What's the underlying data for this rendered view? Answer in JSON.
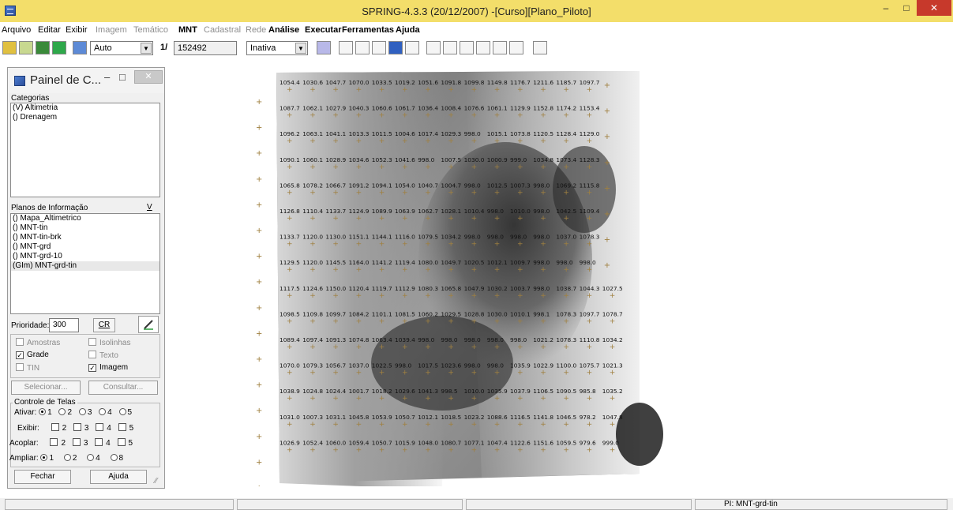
{
  "window": {
    "title": "SPRING-4.3.3 (20/12/2007) -[Curso][Plano_Piloto]",
    "min_glyph": "–",
    "max_glyph": "□",
    "close_glyph": "✕"
  },
  "menu": {
    "items": [
      {
        "label": "Arquivo",
        "enabled": true
      },
      {
        "label": "Editar",
        "enabled": true
      },
      {
        "label": "Exibir",
        "enabled": true
      },
      {
        "label": "Imagem",
        "enabled": false
      },
      {
        "label": "Temático",
        "enabled": false
      },
      {
        "label": "MNT",
        "enabled": true
      },
      {
        "label": "Cadastral",
        "enabled": false
      },
      {
        "label": "Rede",
        "enabled": false
      },
      {
        "label": "Análise",
        "enabled": true
      },
      {
        "label": "Executar",
        "enabled": true
      },
      {
        "label": "Ferramentas",
        "enabled": true
      },
      {
        "label": "Ajuda",
        "enabled": true
      }
    ]
  },
  "toolbar": {
    "zoom_mode": "Auto",
    "scale_prefix": "1/",
    "scale_value": "152492",
    "mode": "Inativa"
  },
  "panel": {
    "title": "Painel de C...",
    "categories_label": "Categorias",
    "categories": [
      "(V) Altimetria",
      "() Drenagem"
    ],
    "planos_label": "Planos de Informação",
    "planos_sort": "V",
    "planos": [
      "() Mapa_Altimetrico",
      "() MNT-tin",
      "() MNT-tin-brk",
      "() MNT-grd",
      "() MNT-grd-10",
      "(GIm) MNT-grd-tin"
    ],
    "planos_selected_index": 5,
    "prioridade_label": "Prioridade:",
    "prioridade_value": "300",
    "cr_label": "CR",
    "checks": {
      "amostras": {
        "label": "Amostras",
        "checked": false,
        "enabled": false
      },
      "isolinhas": {
        "label": "Isolinhas",
        "checked": false,
        "enabled": false
      },
      "grade": {
        "label": "Grade",
        "checked": true,
        "enabled": true
      },
      "texto": {
        "label": "Texto",
        "checked": false,
        "enabled": false
      },
      "tin": {
        "label": "TIN",
        "checked": false,
        "enabled": false
      },
      "imagem": {
        "label": "Imagem",
        "checked": true,
        "enabled": true
      }
    },
    "selecionar_label": "Selecionar...",
    "consultar_label": "Consultar...",
    "controle_label": "Controle de Telas",
    "ativar_label": "Ativar:",
    "exibir_label": "Exibir:",
    "acoplar_label": "Acoplar:",
    "ampliar_label": "Ampliar:",
    "screen_numbers": [
      "1",
      "2",
      "3",
      "4",
      "5"
    ],
    "ampliar_options": [
      "1",
      "2",
      "4",
      "8"
    ],
    "fechar_label": "Fechar",
    "ajuda_label": "Ajuda"
  },
  "grid_values": [
    [
      "1054.4",
      "1030.6",
      "1047.7",
      "1070.0",
      "1033.5",
      "1019.2",
      "1051.6",
      "1091.8",
      "1099.8",
      "1149.8",
      "1176.7",
      "1211.6",
      "1185.7",
      "1097.7"
    ],
    [
      "1087.7",
      "1062.1",
      "1027.9",
      "1040.3",
      "1060.6",
      "1061.7",
      "1036.4",
      "1008.4",
      "1076.6",
      "1061.1",
      "1129.9",
      "1152.8",
      "1174.2",
      "1153.4"
    ],
    [
      "1096.2",
      "1063.1",
      "1041.1",
      "1013.3",
      "1011.5",
      "1004.6",
      "1017.4",
      "1029.3",
      "998.0",
      "1015.1",
      "1073.8",
      "1120.5",
      "1128.4",
      "1129.0"
    ],
    [
      "1090.1",
      "1060.1",
      "1028.9",
      "1034.6",
      "1052.3",
      "1041.6",
      "998.0",
      "1007.5",
      "1030.0",
      "1000.9",
      "999.0",
      "1034.8",
      "1073.4",
      "1128.3"
    ],
    [
      "1065.8",
      "1078.2",
      "1066.7",
      "1091.2",
      "1094.1",
      "1054.0",
      "1040.7",
      "1004.7",
      "998.0",
      "1012.5",
      "1007.3",
      "998.0",
      "1069.2",
      "1115.8"
    ],
    [
      "1126.8",
      "1110.4",
      "1133.7",
      "1124.9",
      "1089.9",
      "1063.9",
      "1062.7",
      "1028.1",
      "1010.4",
      "998.0",
      "1010.0",
      "998.0",
      "1042.5",
      "1109.4"
    ],
    [
      "1133.7",
      "1120.0",
      "1130.0",
      "1151.1",
      "1144.1",
      "1116.0",
      "1079.5",
      "1034.2",
      "998.0",
      "998.0",
      "998.0",
      "998.0",
      "1037.0",
      "1078.3"
    ],
    [
      "1129.5",
      "1120.0",
      "1145.5",
      "1164.0",
      "1141.2",
      "1119.4",
      "1080.0",
      "1049.7",
      "1020.5",
      "1012.1",
      "1009.7",
      "998.0",
      "998.0",
      "998.0"
    ],
    [
      "1117.5",
      "1124.6",
      "1150.0",
      "1120.4",
      "1119.7",
      "1112.9",
      "1080.3",
      "1065.8",
      "1047.9",
      "1030.2",
      "1003.7",
      "998.0",
      "1038.7",
      "1044.3",
      "1027.5"
    ],
    [
      "1098.5",
      "1109.8",
      "1099.7",
      "1084.2",
      "1101.1",
      "1081.5",
      "1060.2",
      "1029.5",
      "1028.8",
      "1030.0",
      "1010.1",
      "998.1",
      "1078.3",
      "1097.7",
      "1078.7"
    ],
    [
      "1089.4",
      "1097.4",
      "1091.3",
      "1074.8",
      "1063.4",
      "1039.4",
      "998.0",
      "998.0",
      "998.0",
      "998.0",
      "998.0",
      "1021.2",
      "1078.3",
      "1110.8",
      "1034.2"
    ],
    [
      "1070.0",
      "1079.3",
      "1056.7",
      "1037.0",
      "1022.5",
      "998.0",
      "1017.5",
      "1023.6",
      "998.0",
      "998.0",
      "1035.9",
      "1022.9",
      "1100.0",
      "1075.7",
      "1021.3"
    ],
    [
      "1038.9",
      "1024.8",
      "1024.4",
      "1001.7",
      "1018.2",
      "1029.6",
      "1041.3",
      "998.5",
      "1010.0",
      "1035.9",
      "1037.9",
      "1106.5",
      "1090.5",
      "985.8",
      "1035.2"
    ],
    [
      "1031.0",
      "1007.3",
      "1031.1",
      "1045.8",
      "1053.9",
      "1050.7",
      "1012.1",
      "1018.5",
      "1023.2",
      "1088.6",
      "1116.5",
      "1141.8",
      "1046.5",
      "978.2",
      "1047.8"
    ],
    [
      "1026.9",
      "1052.4",
      "1060.0",
      "1059.4",
      "1050.7",
      "1015.9",
      "1048.0",
      "1080.7",
      "1077.1",
      "1047.4",
      "1122.6",
      "1151.6",
      "1059.5",
      "979.6",
      "999.0"
    ]
  ],
  "status": {
    "pi_text": "PI: MNT-grd-tin"
  }
}
